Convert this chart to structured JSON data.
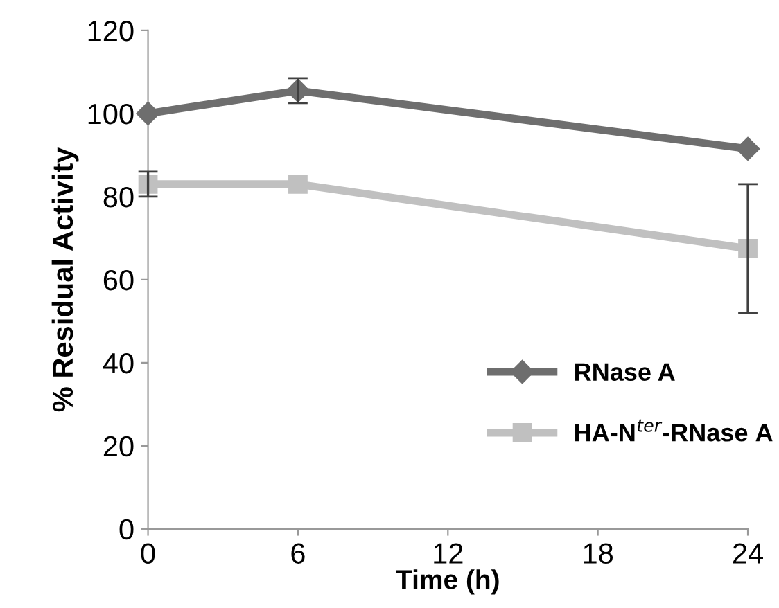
{
  "chart_data": {
    "type": "line",
    "xlabel": "Time (h)",
    "ylabel": "% Residual Activity",
    "x": [
      0,
      6,
      24
    ],
    "series": [
      {
        "name": "RNase A",
        "color": "#6e6e6e",
        "marker": "diamond",
        "values": [
          100,
          105.5,
          91.5
        ],
        "errors": [
          null,
          3,
          null
        ]
      },
      {
        "name": "HA-N$^{ter}$-RNase A",
        "color": "#c0c0c0",
        "marker": "square",
        "values": [
          83,
          83,
          67.5
        ],
        "errors": [
          3,
          null,
          15.5
        ]
      }
    ],
    "xlim": [
      0,
      24
    ],
    "xticks": [
      0,
      6,
      12,
      18,
      24
    ],
    "ylim": [
      0,
      120
    ],
    "yticks": [
      0,
      20,
      40,
      60,
      80,
      100,
      120
    ],
    "grid": false,
    "legend": "bottom right",
    "line_style": "solid"
  }
}
